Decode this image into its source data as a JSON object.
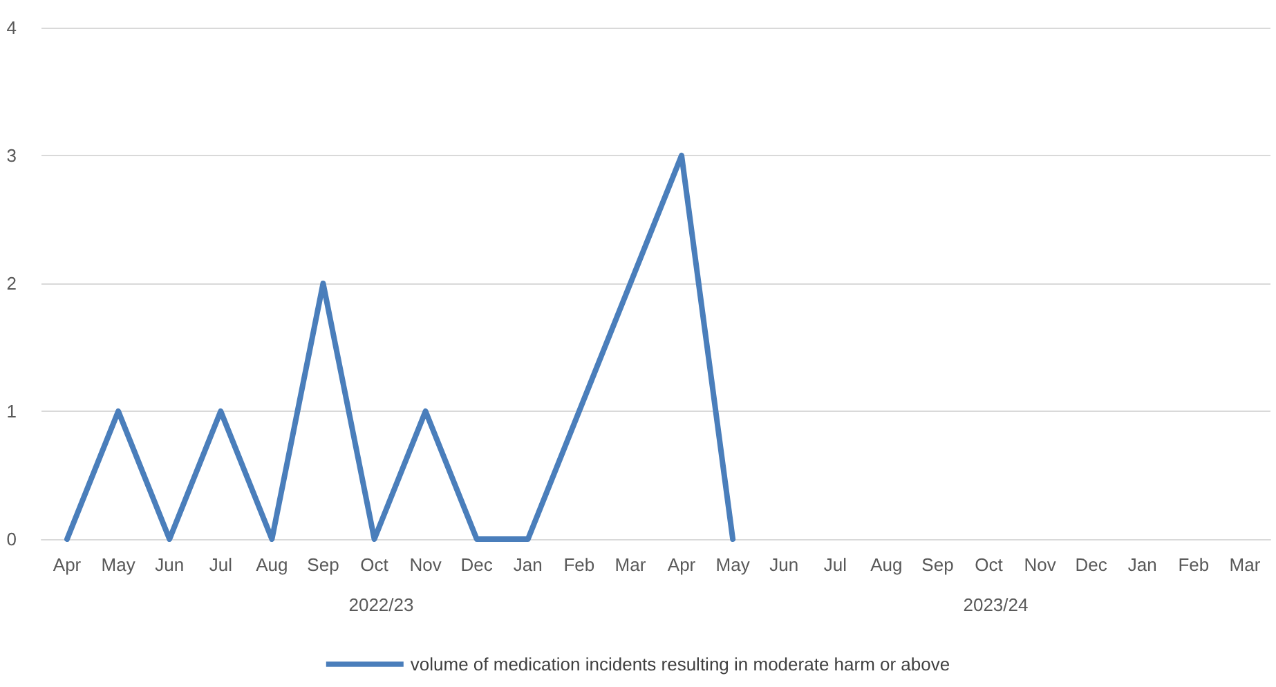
{
  "chart_data": {
    "type": "line",
    "categories": [
      "Apr",
      "May",
      "Jun",
      "Jul",
      "Aug",
      "Sep",
      "Oct",
      "Nov",
      "Dec",
      "Jan",
      "Feb",
      "Mar",
      "Apr",
      "May",
      "Jun",
      "Jul",
      "Aug",
      "Sep",
      "Oct",
      "Nov",
      "Dec",
      "Jan",
      "Feb",
      "Mar"
    ],
    "series": [
      {
        "name": "volume of medication incidents resulting in moderate harm or above",
        "color": "#4a7ebb",
        "values": [
          0,
          1,
          0,
          1,
          0,
          2,
          0,
          1,
          0,
          0,
          1,
          2,
          3,
          0,
          null,
          null,
          null,
          null,
          null,
          null,
          null,
          null,
          null,
          null
        ]
      }
    ],
    "ylim": [
      0,
      4
    ],
    "yticks": [
      0,
      1,
      2,
      3,
      4
    ],
    "grid": "y",
    "legend": "bottom",
    "marker": "none",
    "line_style": "solid",
    "annotations": [
      "2022/23",
      "2023/24"
    ]
  }
}
